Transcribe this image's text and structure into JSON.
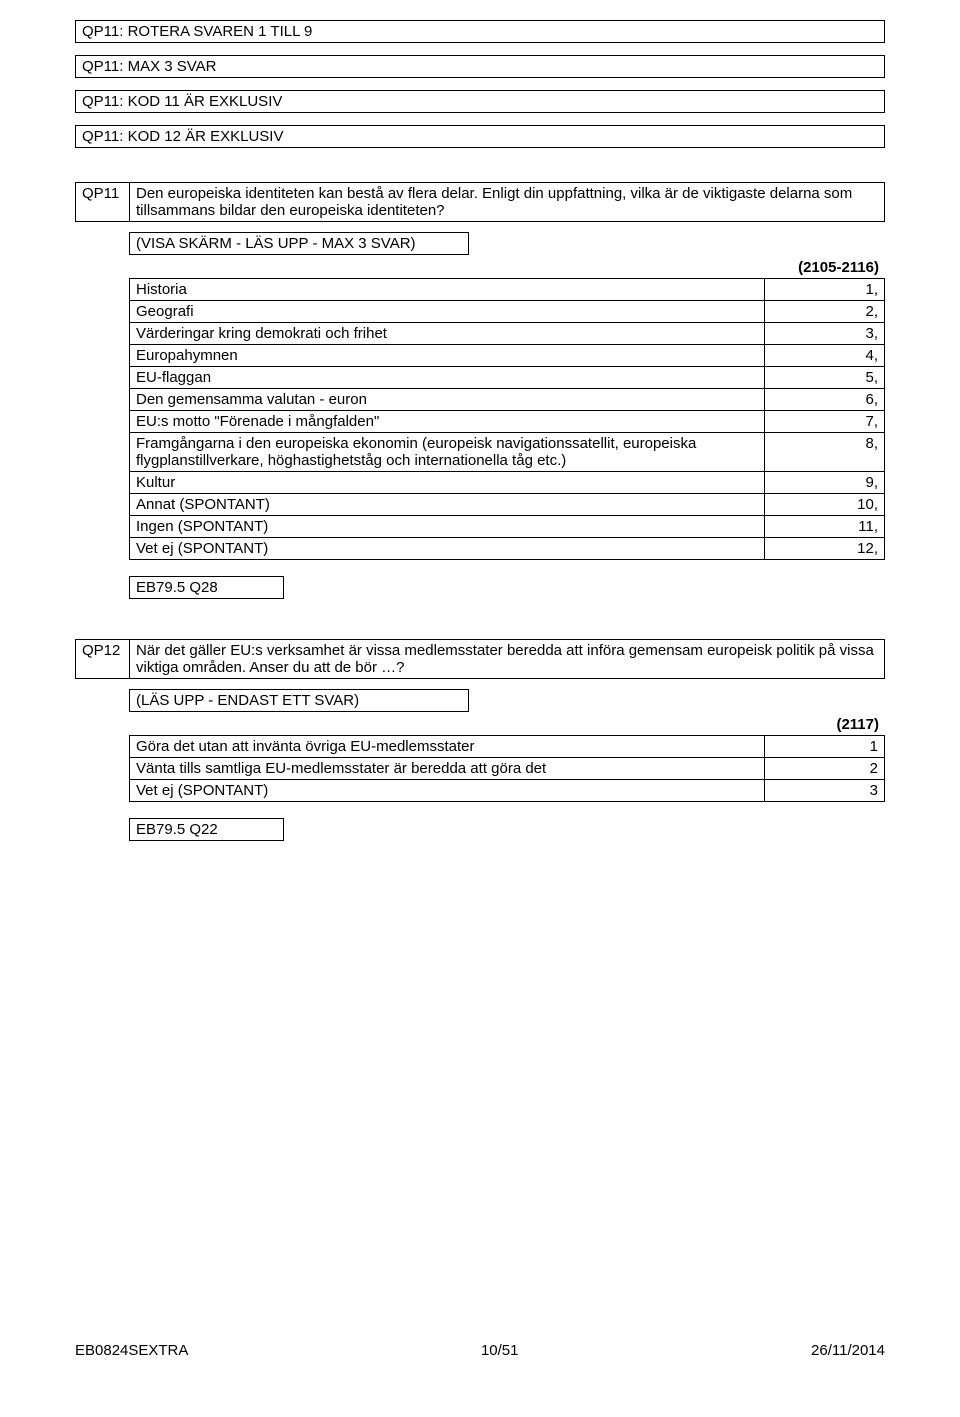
{
  "header_boxes": [
    "QP11: ROTERA SVAREN 1 TILL 9",
    "QP11: MAX 3 SVAR",
    "QP11: KOD 11 ÄR EXKLUSIV",
    "QP11: KOD 12 ÄR EXKLUSIV"
  ],
  "qp11": {
    "code": "QP11",
    "text": "Den europeiska identiteten kan bestå av flera delar. Enligt din uppfattning, vilka är de viktigaste delarna som tillsammans bildar den europeiska identiteten?",
    "instruction": "(VISA SKÄRM - LÄS UPP - MAX 3 SVAR)",
    "range": "(2105-2116)",
    "answers": [
      {
        "label": "Historia",
        "num": "1,"
      },
      {
        "label": "Geografi",
        "num": "2,"
      },
      {
        "label": "Värderingar kring demokrati och frihet",
        "num": "3,"
      },
      {
        "label": "Europahymnen",
        "num": "4,"
      },
      {
        "label": "EU-flaggan",
        "num": "5,"
      },
      {
        "label": "Den gemensamma valutan - euron",
        "num": "6,"
      },
      {
        "label": "EU:s motto \"Förenade i mångfalden\"",
        "num": "7,"
      },
      {
        "label": "Framgångarna i den europeiska ekonomin (europeisk navigationssatellit, europeiska flygplanstillverkare, höghastighetståg och internationella tåg etc.)",
        "num": "8,"
      },
      {
        "label": "Kultur",
        "num": "9,"
      },
      {
        "label": "Annat (SPONTANT)",
        "num": "10,"
      },
      {
        "label": "Ingen (SPONTANT)",
        "num": "11,"
      },
      {
        "label": "Vet ej (SPONTANT)",
        "num": "12,"
      }
    ],
    "ref": "EB79.5 Q28"
  },
  "qp12": {
    "code": "QP12",
    "text": "När det gäller EU:s verksamhet är vissa medlemsstater beredda att införa gemensam europeisk politik på vissa viktiga områden. Anser du att de bör …?",
    "instruction": "(LÄS UPP - ENDAST ETT SVAR)",
    "range": "(2117)",
    "answers": [
      {
        "label": "Göra det utan att invänta övriga EU-medlemsstater",
        "num": "1"
      },
      {
        "label": "Vänta tills samtliga EU-medlemsstater är beredda att göra det",
        "num": "2"
      },
      {
        "label": "Vet ej (SPONTANT)",
        "num": "3"
      }
    ],
    "ref": "EB79.5 Q22"
  },
  "footer": {
    "left": "EB0824SEXTRA",
    "center": "10/51",
    "right": "26/11/2014"
  }
}
